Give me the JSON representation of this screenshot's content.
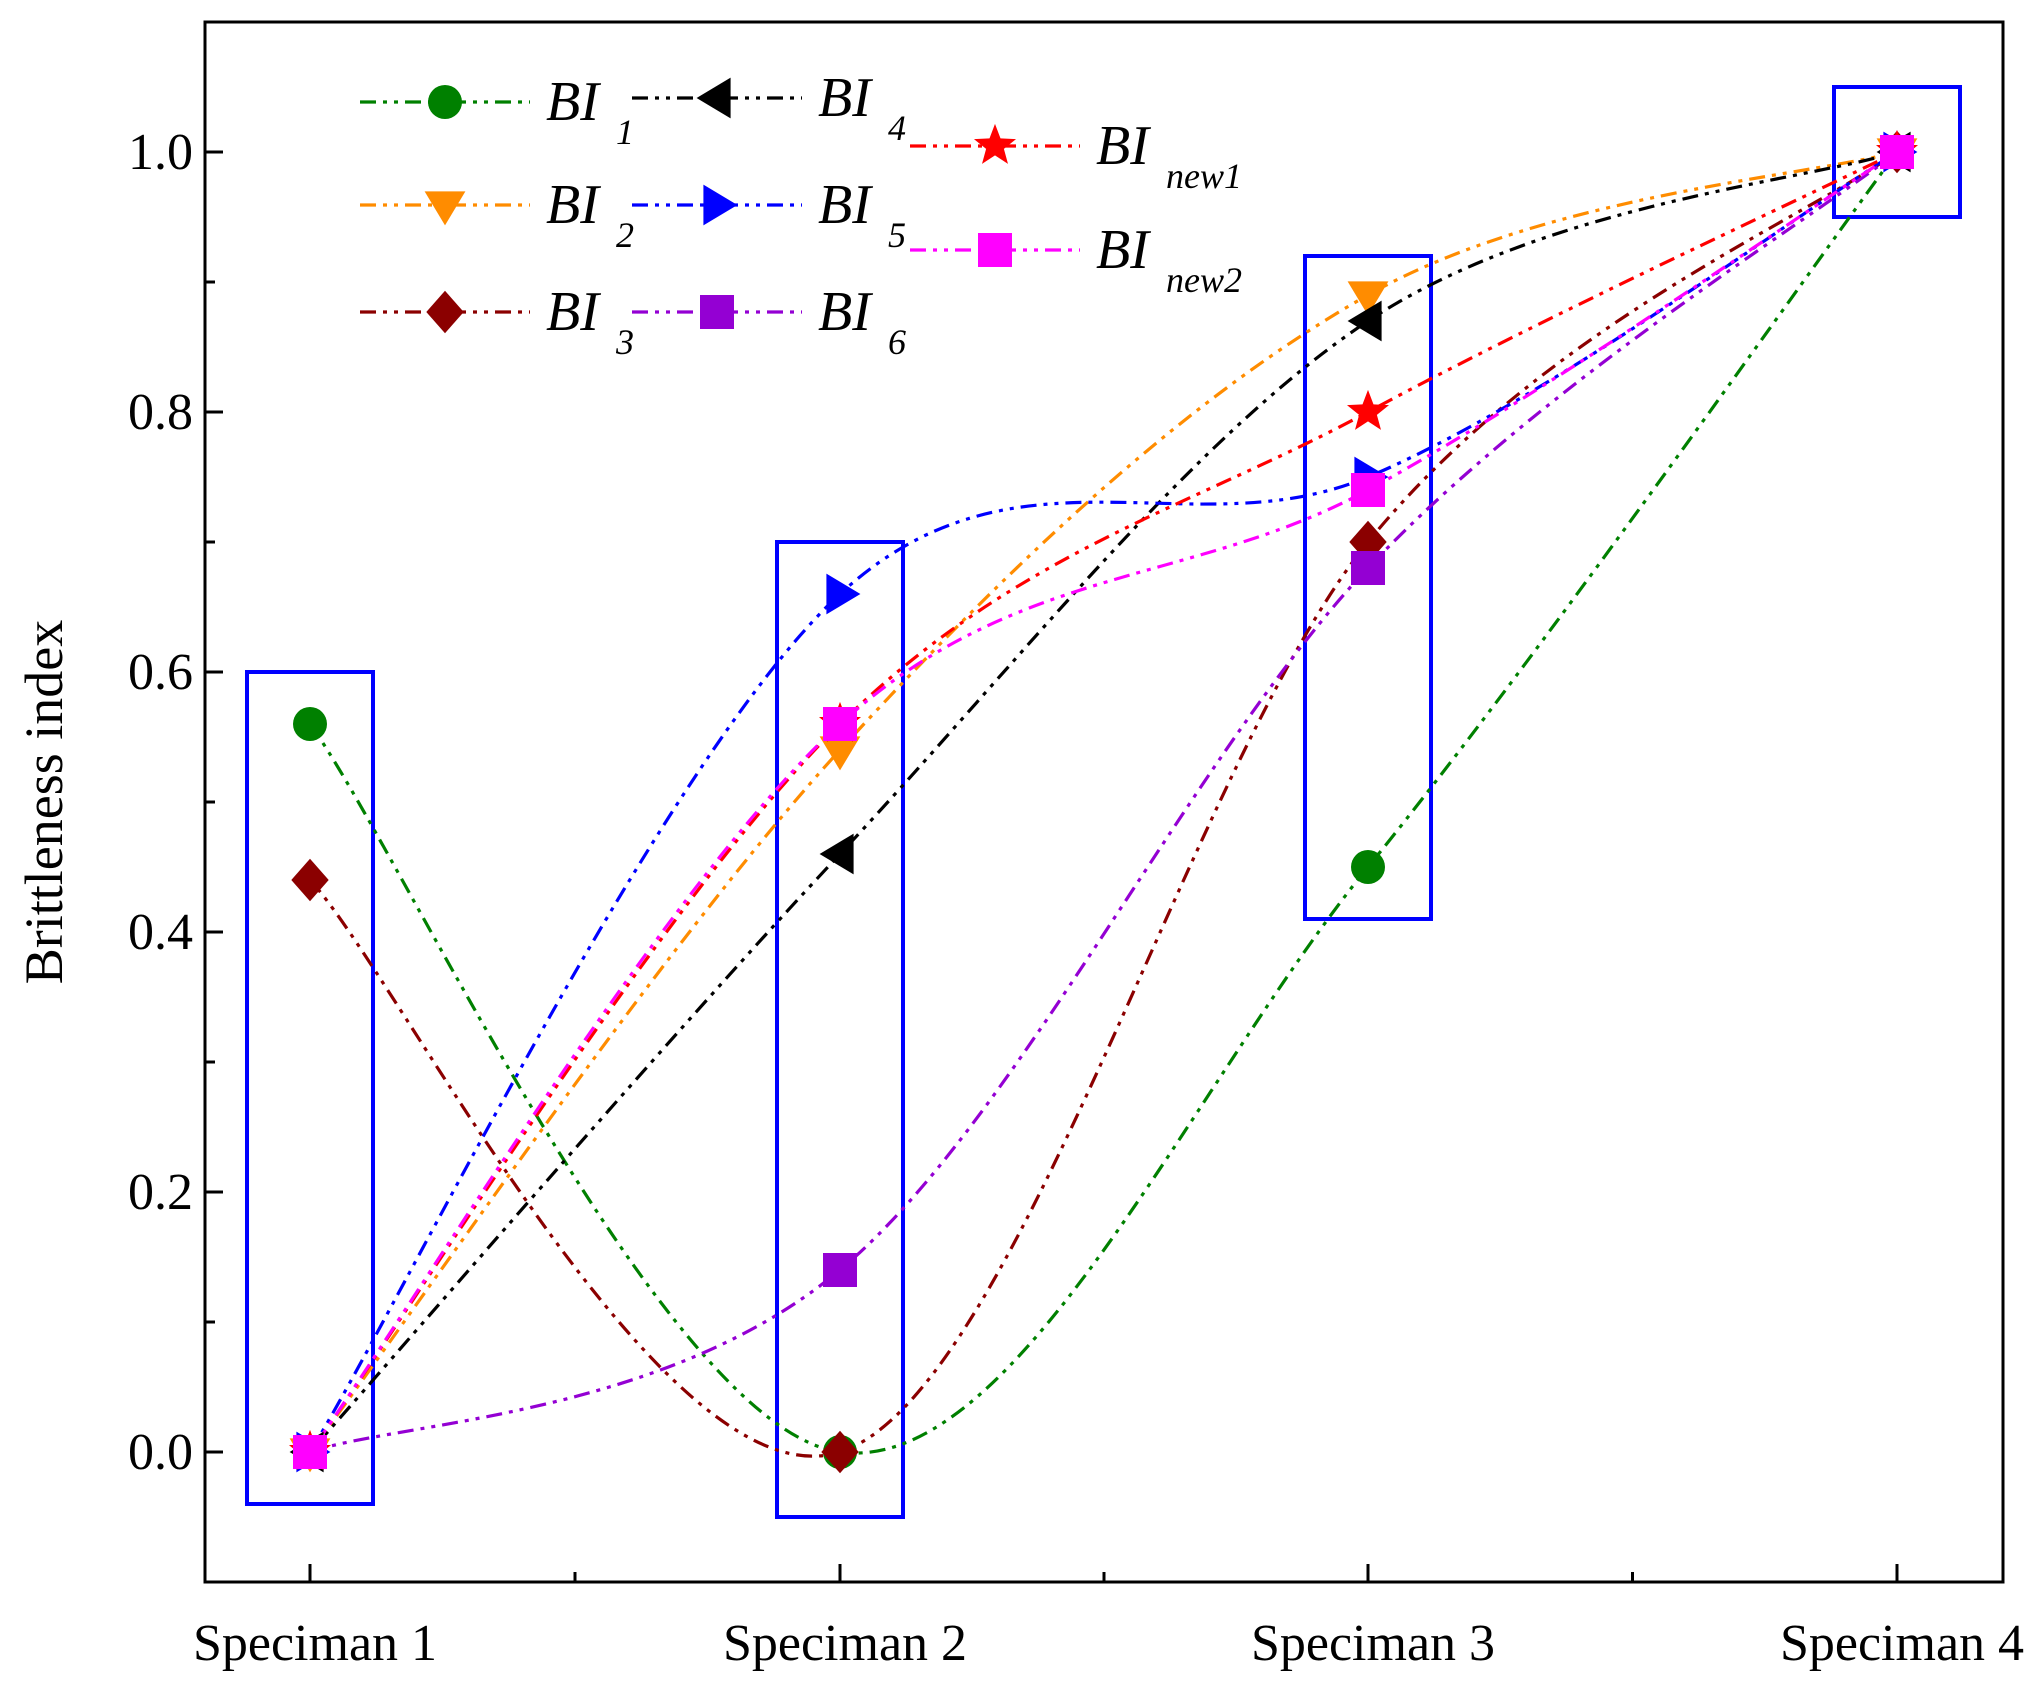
{
  "chart_data": {
    "type": "line",
    "title": "",
    "xlabel": "",
    "ylabel": "Brittleness index",
    "categories": [
      "Speciman 1",
      "Speciman 2",
      "Speciman 3",
      "Speciman 4"
    ],
    "ylim": [
      -0.1,
      1.1
    ],
    "yticks": [
      "0.0",
      "0.2",
      "0.4",
      "0.6",
      "0.8",
      "1.0"
    ],
    "grid": false,
    "smoothed": true,
    "legend_position": "top-left",
    "series": [
      {
        "name": "BI",
        "sub": "1",
        "color": "#008000",
        "marker": "circle",
        "values": [
          0.56,
          0.0,
          0.45,
          1.0
        ]
      },
      {
        "name": "BI",
        "sub": "2",
        "color": "#FF8C00",
        "marker": "triangle-down",
        "values": [
          0.0,
          0.54,
          0.89,
          1.0
        ]
      },
      {
        "name": "BI",
        "sub": "3",
        "color": "#8B0000",
        "marker": "diamond",
        "values": [
          0.44,
          0.0,
          0.7,
          1.0
        ]
      },
      {
        "name": "BI",
        "sub": "4",
        "color": "#000000",
        "marker": "triangle-left",
        "values": [
          0.0,
          0.46,
          0.87,
          1.0
        ]
      },
      {
        "name": "BI",
        "sub": "5",
        "color": "#0000FF",
        "marker": "triangle-right",
        "values": [
          0.0,
          0.66,
          0.75,
          1.0
        ]
      },
      {
        "name": "BI",
        "sub": "6",
        "color": "#9400D3",
        "marker": "square",
        "values": [
          0.0,
          0.14,
          0.68,
          1.0
        ]
      },
      {
        "name": "BI",
        "sub": "new1",
        "color": "#FF0000",
        "marker": "star",
        "values": [
          0.0,
          0.56,
          0.8,
          1.0
        ]
      },
      {
        "name": "BI",
        "sub": "new2",
        "color": "#FF00FF",
        "marker": "square",
        "values": [
          0.0,
          0.56,
          0.74,
          1.0
        ]
      }
    ],
    "highlight_boxes": [
      {
        "category": "Speciman 1",
        "y_range": [
          -0.04,
          0.6
        ]
      },
      {
        "category": "Speciman 2",
        "y_range": [
          -0.05,
          0.7
        ]
      },
      {
        "category": "Speciman 3",
        "y_range": [
          0.41,
          0.92
        ]
      },
      {
        "category": "Speciman 4",
        "y_range": [
          0.95,
          1.05
        ]
      }
    ],
    "highlight_color": "#0000FF"
  }
}
